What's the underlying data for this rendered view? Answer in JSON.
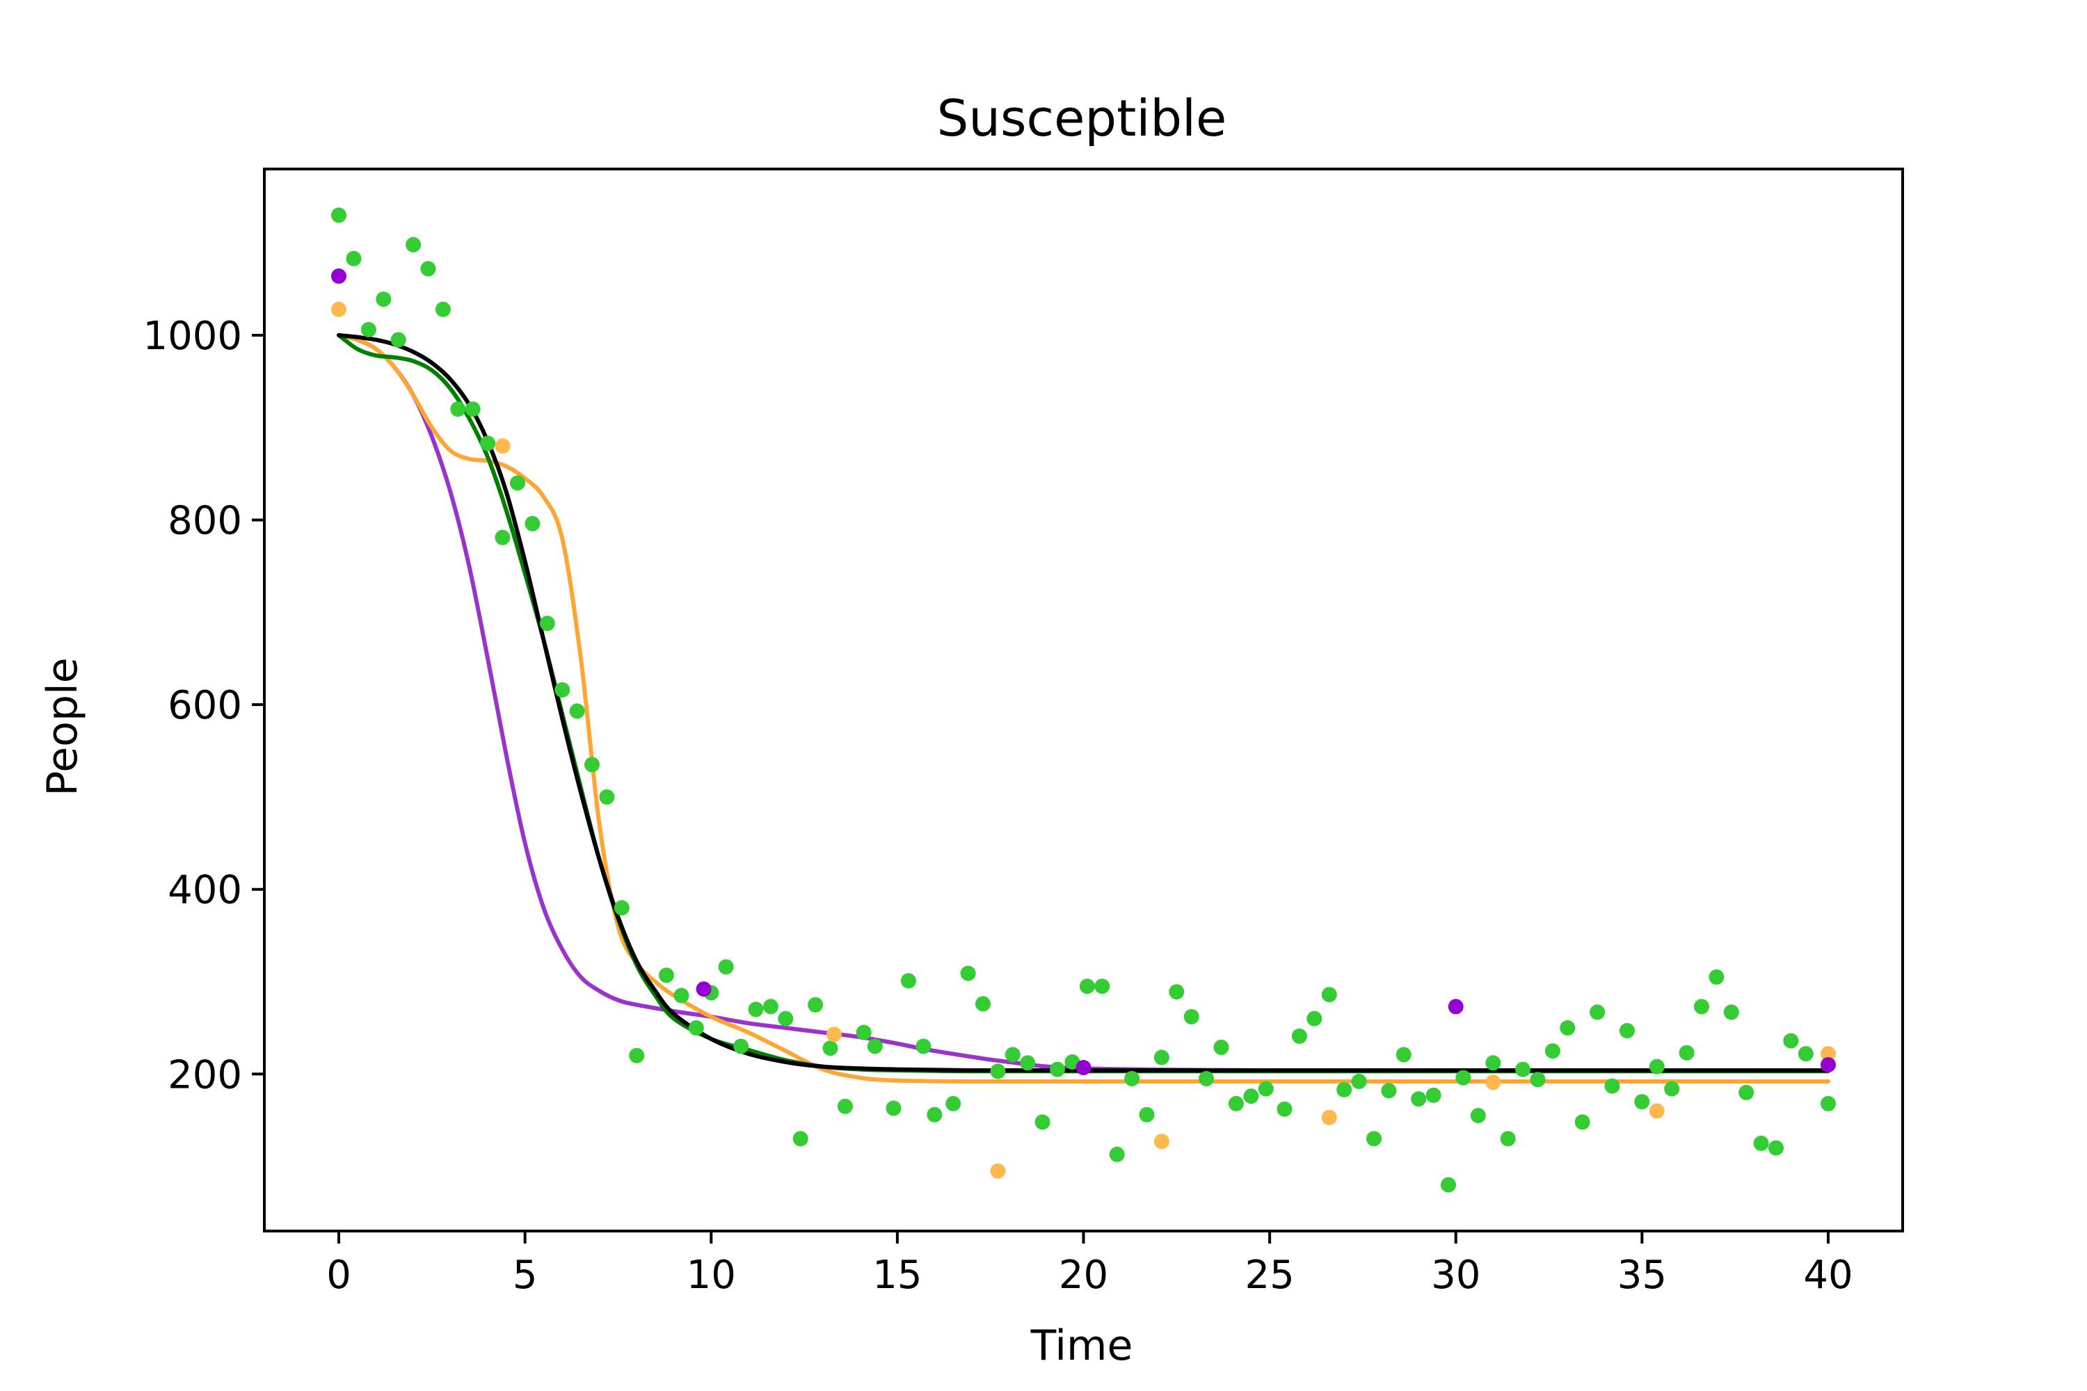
{
  "chart_data": {
    "type": "line",
    "title": "Susceptible",
    "xlabel": "Time",
    "ylabel": "People",
    "xlim": [
      -2,
      42
    ],
    "ylim": [
      30,
      1180
    ],
    "xticks": [
      0,
      5,
      10,
      15,
      20,
      25,
      30,
      35,
      40
    ],
    "yticks": [
      200,
      400,
      600,
      800,
      1000
    ],
    "grid": false,
    "legend": "none",
    "colors": {
      "purple": "#9933cc",
      "orange": "#ffa533",
      "green": "#008000",
      "black": "#000000",
      "scatter_green": "#33cc33",
      "scatter_orange": "#ffb84d",
      "scatter_purple": "#9400d3"
    },
    "lines": [
      {
        "color": "#9933cc",
        "x": [
          0,
          0.5,
          1,
          1.5,
          2,
          2.5,
          3,
          3.5,
          4,
          4.5,
          5,
          5.5,
          6,
          6.5,
          7,
          7.5,
          8,
          9,
          10,
          11,
          12,
          13,
          14,
          15,
          16,
          18,
          20,
          25,
          30,
          35,
          40
        ],
        "y": [
          1000,
          995,
          985,
          965,
          935,
          890,
          830,
          750,
          650,
          545,
          450,
          380,
          335,
          305,
          290,
          280,
          275,
          268,
          262,
          255,
          250,
          245,
          240,
          233,
          225,
          213,
          206,
          204,
          204,
          204,
          204
        ]
      },
      {
        "color": "#ffa533",
        "x": [
          0,
          0.5,
          1,
          1.5,
          2,
          2.5,
          3,
          3.5,
          4,
          4.5,
          5,
          5.5,
          6,
          6.5,
          7,
          7.5,
          8,
          8.5,
          9,
          10,
          11,
          12,
          13,
          14,
          15,
          17,
          20,
          25,
          30,
          35,
          40
        ],
        "y": [
          1000,
          995,
          985,
          965,
          935,
          900,
          875,
          866,
          864,
          858,
          845,
          825,
          780,
          650,
          470,
          360,
          320,
          300,
          285,
          262,
          245,
          225,
          205,
          196,
          193,
          192,
          192,
          192,
          192,
          192,
          192
        ]
      },
      {
        "color": "#008000",
        "x": [
          0,
          0.5,
          1,
          1.5,
          2,
          2.5,
          3,
          3.5,
          4,
          4.5,
          5,
          5.5,
          6,
          6.5,
          7,
          7.5,
          8,
          8.5,
          9,
          10,
          11,
          12,
          13,
          14,
          15,
          17,
          20,
          25,
          30,
          35,
          40
        ],
        "y": [
          1000,
          985,
          978,
          976,
          972,
          962,
          942,
          910,
          868,
          810,
          742,
          670,
          590,
          510,
          432,
          368,
          318,
          285,
          260,
          238,
          226,
          215,
          208,
          205,
          204,
          203,
          203,
          203,
          203,
          203,
          203
        ]
      },
      {
        "color": "#000000",
        "x": [
          0,
          0.5,
          1,
          1.5,
          2,
          2.5,
          3,
          3.5,
          4,
          4.5,
          5,
          5.5,
          6,
          6.5,
          7,
          7.5,
          8,
          8.5,
          9,
          10,
          11,
          12,
          13,
          14,
          15,
          17,
          20,
          25,
          30,
          35,
          40
        ],
        "y": [
          1000,
          998,
          995,
          990,
          982,
          970,
          952,
          925,
          885,
          830,
          755,
          670,
          585,
          505,
          432,
          370,
          322,
          290,
          265,
          238,
          222,
          213,
          208,
          206,
          205,
          204,
          204,
          204,
          204,
          204,
          204
        ]
      }
    ],
    "scatter": [
      {
        "color": "#33cc33",
        "points": [
          [
            0,
            1130
          ],
          [
            0.4,
            1083
          ],
          [
            0.8,
            1006
          ],
          [
            1.2,
            1039
          ],
          [
            1.6,
            995
          ],
          [
            2,
            1098
          ],
          [
            2.4,
            1072
          ],
          [
            2.8,
            1028
          ],
          [
            3.2,
            920
          ],
          [
            3.6,
            920
          ],
          [
            4,
            883
          ],
          [
            4.4,
            781
          ],
          [
            4.8,
            840
          ],
          [
            5.2,
            796
          ],
          [
            5.6,
            688
          ],
          [
            6,
            616
          ],
          [
            6.4,
            593
          ],
          [
            6.8,
            535
          ],
          [
            7.2,
            500
          ],
          [
            7.6,
            380
          ],
          [
            8,
            220
          ],
          [
            8.8,
            307
          ],
          [
            9.2,
            285
          ],
          [
            9.6,
            250
          ],
          [
            10,
            288
          ],
          [
            10.4,
            316
          ],
          [
            10.8,
            230
          ],
          [
            11.2,
            270
          ],
          [
            11.6,
            273
          ],
          [
            12,
            260
          ],
          [
            12.4,
            130
          ],
          [
            12.8,
            275
          ],
          [
            13.2,
            228
          ],
          [
            13.6,
            165
          ],
          [
            14.1,
            245
          ],
          [
            14.4,
            230
          ],
          [
            14.9,
            163
          ],
          [
            15.3,
            301
          ],
          [
            15.7,
            230
          ],
          [
            16,
            156
          ],
          [
            16.5,
            168
          ],
          [
            16.9,
            309
          ],
          [
            17.3,
            276
          ],
          [
            17.7,
            203
          ],
          [
            18.1,
            221
          ],
          [
            18.5,
            212
          ],
          [
            18.9,
            148
          ],
          [
            19.3,
            205
          ],
          [
            19.7,
            213
          ],
          [
            20.1,
            295
          ],
          [
            20.5,
            295
          ],
          [
            20.9,
            113
          ],
          [
            21.3,
            195
          ],
          [
            21.7,
            156
          ],
          [
            22.1,
            218
          ],
          [
            22.5,
            289
          ],
          [
            22.9,
            262
          ],
          [
            23.3,
            195
          ],
          [
            23.7,
            229
          ],
          [
            24.1,
            168
          ],
          [
            24.5,
            176
          ],
          [
            24.9,
            184
          ],
          [
            25.4,
            162
          ],
          [
            25.8,
            241
          ],
          [
            26.2,
            260
          ],
          [
            26.6,
            286
          ],
          [
            27,
            183
          ],
          [
            27.4,
            192
          ],
          [
            27.8,
            130
          ],
          [
            28.2,
            182
          ],
          [
            28.6,
            221
          ],
          [
            29,
            173
          ],
          [
            29.4,
            177
          ],
          [
            29.8,
            80
          ],
          [
            30.2,
            196
          ],
          [
            30.6,
            155
          ],
          [
            31,
            212
          ],
          [
            31.4,
            130
          ],
          [
            31.8,
            205
          ],
          [
            32.2,
            194
          ],
          [
            32.6,
            225
          ],
          [
            33,
            250
          ],
          [
            33.4,
            148
          ],
          [
            33.8,
            267
          ],
          [
            34.2,
            187
          ],
          [
            34.6,
            247
          ],
          [
            35,
            170
          ],
          [
            35.4,
            208
          ],
          [
            35.8,
            184
          ],
          [
            36.2,
            223
          ],
          [
            36.6,
            273
          ],
          [
            37,
            305
          ],
          [
            37.4,
            267
          ],
          [
            37.8,
            180
          ],
          [
            38.2,
            125
          ],
          [
            38.6,
            120
          ],
          [
            39,
            236
          ],
          [
            39.4,
            222
          ],
          [
            40,
            168
          ]
        ]
      },
      {
        "color": "#ffb84d",
        "points": [
          [
            0,
            1028
          ],
          [
            4.4,
            880
          ],
          [
            13.3,
            243
          ],
          [
            17.7,
            95
          ],
          [
            22.1,
            127
          ],
          [
            26.6,
            153
          ],
          [
            31,
            191
          ],
          [
            35.4,
            160
          ],
          [
            40,
            222
          ]
        ]
      },
      {
        "color": "#9400d3",
        "points": [
          [
            0,
            1064
          ],
          [
            9.8,
            292
          ],
          [
            20,
            207
          ],
          [
            30,
            273
          ],
          [
            40,
            210
          ]
        ]
      }
    ]
  }
}
